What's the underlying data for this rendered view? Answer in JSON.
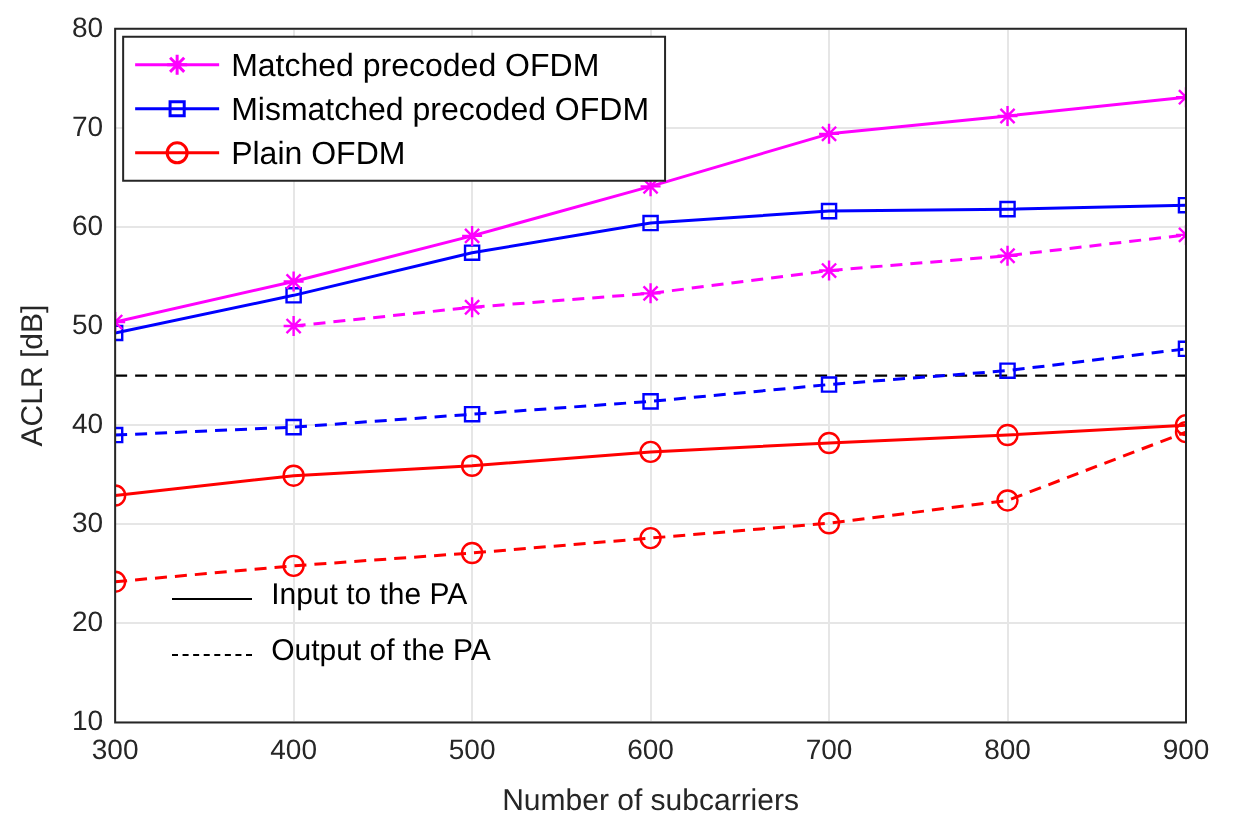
{
  "chart_data": {
    "type": "line",
    "xlabel": "Number of subcarriers",
    "ylabel": "ACLR [dB]",
    "x": [
      300,
      400,
      500,
      600,
      700,
      800,
      900
    ],
    "xlim": [
      300,
      900
    ],
    "xticks": [
      300,
      400,
      500,
      600,
      700,
      800,
      900
    ],
    "ylim": [
      10,
      80
    ],
    "yticks": [
      10,
      20,
      30,
      40,
      50,
      60,
      70,
      80
    ],
    "grid": true,
    "legend": "top left",
    "series": [
      {
        "name": "Matched precoded OFDM",
        "color": "#ff00ff",
        "marker": "cross",
        "line_style": "solid",
        "values": [
          50.4,
          54.5,
          59.1,
          64.1,
          69.4,
          71.2,
          73.1
        ]
      },
      {
        "name": "Mismatched precoded OFDM",
        "color": "#0000ff",
        "marker": "square",
        "line_style": "solid",
        "values": [
          49.3,
          53.1,
          57.4,
          60.4,
          61.6,
          61.8,
          62.2
        ]
      },
      {
        "name": "Plain OFDM",
        "color": "#ff0000",
        "marker": "circle",
        "line_style": "solid",
        "values": [
          32.9,
          34.9,
          35.9,
          37.3,
          38.2,
          39.0,
          40.0
        ]
      },
      {
        "color": "#ff00ff",
        "marker": "cross",
        "line_style": "dashed",
        "values": [
          null,
          50.0,
          51.9,
          53.3,
          55.6,
          57.1,
          59.2
        ]
      },
      {
        "color": "#0000ff",
        "marker": "square",
        "line_style": "dashed",
        "values": [
          39.0,
          39.8,
          41.1,
          42.4,
          44.1,
          45.5,
          47.7
        ]
      },
      {
        "color": "#ff0000",
        "marker": "circle",
        "line_style": "dashed",
        "values": [
          24.2,
          25.8,
          27.1,
          28.6,
          30.1,
          32.4,
          39.3
        ]
      }
    ],
    "ref_lines": [
      {
        "axis": "y",
        "value": 45,
        "color": "#000000",
        "line_style": "dashed"
      }
    ],
    "annotations": [
      "Input to the PA",
      "Output of the PA"
    ]
  }
}
